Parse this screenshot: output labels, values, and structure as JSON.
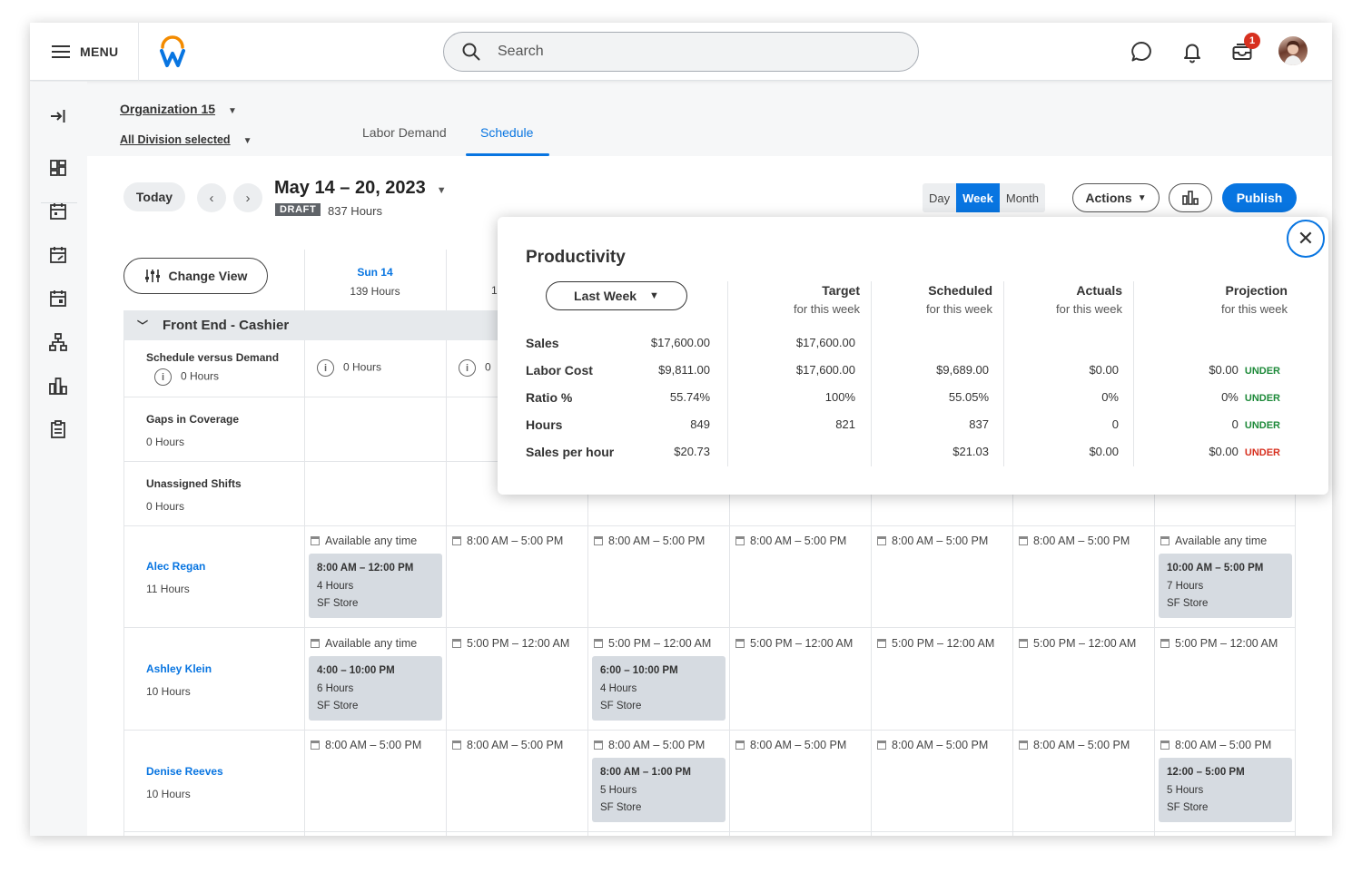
{
  "header": {
    "menu_label": "MENU",
    "search_placeholder": "Search",
    "inbox_count": "1"
  },
  "org": {
    "name": "Organization 15",
    "division": "All Division selected"
  },
  "tabs": [
    {
      "label": "Labor Demand"
    },
    {
      "label": "Schedule"
    }
  ],
  "toolbar": {
    "today": "Today",
    "date_range": "May 14 – 20, 2023",
    "status": "DRAFT",
    "total_hours": "837 Hours",
    "views": [
      "Day",
      "Week",
      "Month"
    ],
    "active_view": "Week",
    "actions": "Actions",
    "publish": "Publish",
    "change_view": "Change View"
  },
  "days": [
    {
      "label": "Sun 14",
      "hours": "139 Hours"
    }
  ],
  "section": "Front End - Cashier",
  "summary_rows": {
    "svd": {
      "label": "Schedule versus Demand",
      "hours": "0 Hours",
      "sun": "0 Hours",
      "mon": "0"
    },
    "gaps": {
      "label": "Gaps in Coverage",
      "hours": "0 Hours"
    },
    "unassigned": {
      "label": "Unassigned Shifts",
      "hours": "0 Hours"
    }
  },
  "employees": [
    {
      "name": "Alec Regan",
      "hours": "11 Hours",
      "availability": [
        "Available any time",
        "8:00 AM – 5:00 PM",
        "8:00 AM – 5:00 PM",
        "8:00 AM – 5:00 PM",
        "8:00 AM – 5:00 PM",
        "8:00 AM – 5:00 PM",
        "Available any time"
      ],
      "shifts": [
        {
          "time": "8:00 AM – 12:00 PM",
          "hours": "4 Hours",
          "store": "SF Store"
        },
        {
          "time": "10:00 AM – 5:00 PM",
          "hours": "7 Hours",
          "store": "SF Store"
        }
      ]
    },
    {
      "name": "Ashley Klein",
      "hours": "10 Hours",
      "availability": [
        "Available any time",
        "5:00 PM – 12:00 AM",
        "5:00 PM – 12:00 AM",
        "5:00 PM – 12:00 AM",
        "5:00 PM – 12:00 AM",
        "5:00 PM – 12:00 AM",
        "5:00 PM – 12:00 AM"
      ],
      "shifts": [
        {
          "time": "4:00 – 10:00 PM",
          "hours": "6 Hours",
          "store": "SF Store"
        },
        {
          "time": "6:00 – 10:00 PM",
          "hours": "4 Hours",
          "store": "SF Store"
        }
      ]
    },
    {
      "name": "Denise Reeves",
      "hours": "10 Hours",
      "availability": [
        "8:00 AM – 5:00 PM",
        "8:00 AM – 5:00 PM",
        "8:00 AM – 5:00 PM",
        "8:00 AM – 5:00 PM",
        "8:00 AM – 5:00 PM",
        "8:00 AM – 5:00 PM",
        "8:00 AM – 5:00 PM"
      ],
      "shifts": [
        {
          "time": "8:00 AM – 1:00 PM",
          "hours": "5 Hours",
          "store": "SF Store"
        },
        {
          "time": "12:00 – 5:00 PM",
          "hours": "5 Hours",
          "store": "SF Store"
        }
      ]
    }
  ],
  "productivity": {
    "title": "Productivity",
    "period": "Last Week",
    "columns": [
      {
        "title": "Target",
        "sub": "for this week"
      },
      {
        "title": "Scheduled",
        "sub": "for this week"
      },
      {
        "title": "Actuals",
        "sub": "for this week"
      },
      {
        "title": "Projection",
        "sub": "for this week"
      }
    ],
    "rows": [
      {
        "label": "Sales",
        "last": "$17,600.00",
        "target": "$17,600.00",
        "scheduled": "",
        "actuals": "",
        "projection": "",
        "flag": ""
      },
      {
        "label": "Labor Cost",
        "last": "$9,811.00",
        "target": "$17,600.00",
        "scheduled": "$9,689.00",
        "actuals": "$0.00",
        "projection": "$0.00",
        "flag": "UNDER"
      },
      {
        "label": "Ratio %",
        "last": "55.74%",
        "target": "100%",
        "scheduled": "55.05%",
        "actuals": "0%",
        "projection": "0%",
        "flag": "UNDER"
      },
      {
        "label": "Hours",
        "last": "849",
        "target": "821",
        "scheduled": "837",
        "actuals": "0",
        "projection": "0",
        "flag": "UNDER"
      },
      {
        "label": "Sales per hour",
        "last": "$20.73",
        "target": "",
        "scheduled": "$21.03",
        "actuals": "$0.00",
        "projection": "$0.00",
        "flag": "UNDER"
      }
    ],
    "flag_colors": {
      "green": "#1e8a3a",
      "red": "#d7301f"
    }
  }
}
